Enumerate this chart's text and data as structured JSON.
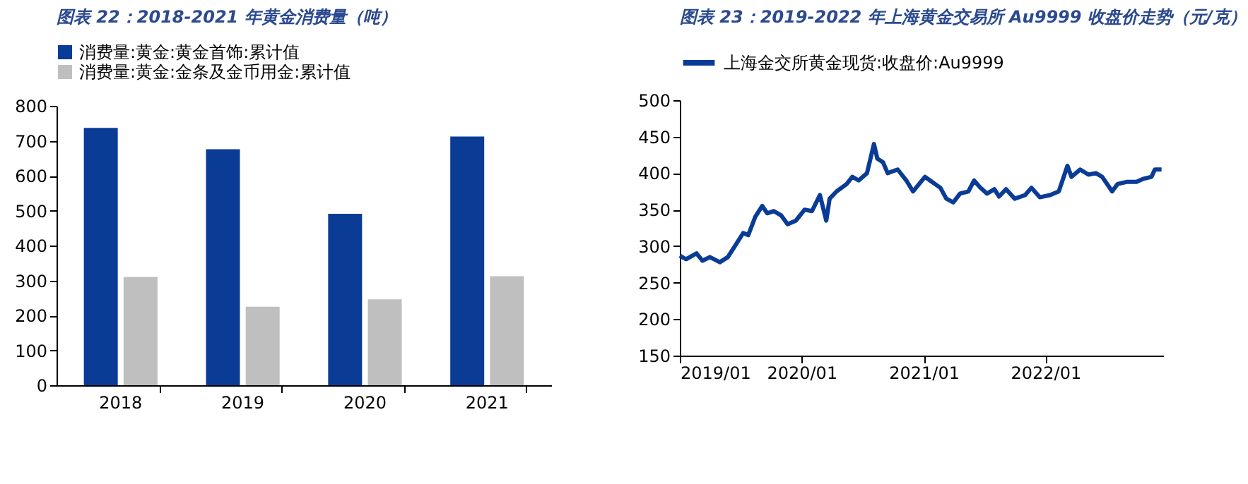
{
  "chart_data": [
    {
      "type": "bar",
      "title": "图表 22：2018-2021 年黄金消费量（吨）",
      "categories": [
        "2018",
        "2019",
        "2020",
        "2021"
      ],
      "series": [
        {
          "name": "消费量:黄金:黄金首饰:累计值",
          "color": "#0a3c96",
          "values": [
            737,
            676,
            491,
            712
          ]
        },
        {
          "name": "消费量:黄金:金条及金币用金:累计值",
          "color": "#bfbfbf",
          "values": [
            310,
            225,
            246,
            312
          ]
        }
      ],
      "ylim": [
        0,
        800
      ],
      "yticks": [
        0,
        100,
        200,
        300,
        400,
        500,
        600,
        700,
        800
      ],
      "grid": false,
      "legend": "top"
    },
    {
      "type": "line",
      "title": "图表 23：2019-2022 年上海黄金交易所 Au9999 收盘价走势（元/克）",
      "x": [
        "2019-01-01",
        "2019-01-20",
        "2019-02-20",
        "2019-03-10",
        "2019-04-01",
        "2019-05-01",
        "2019-05-25",
        "2019-06-15",
        "2019-07-10",
        "2019-07-25",
        "2019-08-15",
        "2019-09-05",
        "2019-09-20",
        "2019-10-10",
        "2019-11-01",
        "2019-11-20",
        "2019-12-15",
        "2020-01-10",
        "2020-02-01",
        "2020-02-25",
        "2020-03-15",
        "2020-03-25",
        "2020-04-15",
        "2020-05-15",
        "2020-06-01",
        "2020-06-20",
        "2020-07-15",
        "2020-08-05",
        "2020-08-15",
        "2020-09-01",
        "2020-09-15",
        "2020-10-15",
        "2020-11-10",
        "2020-11-30",
        "2021-01-05",
        "2021-01-20",
        "2021-02-20",
        "2021-03-10",
        "2021-03-31",
        "2021-04-20",
        "2021-05-15",
        "2021-06-01",
        "2021-06-20",
        "2021-07-10",
        "2021-08-01",
        "2021-08-15",
        "2021-09-05",
        "2021-10-01",
        "2021-11-01",
        "2021-11-20",
        "2021-12-15",
        "2022-01-15",
        "2022-02-10",
        "2022-03-08",
        "2022-03-20",
        "2022-04-15",
        "2022-05-10",
        "2022-06-01",
        "2022-06-20",
        "2022-07-20",
        "2022-08-05",
        "2022-09-01",
        "2022-10-01",
        "2022-10-20",
        "2022-11-15",
        "2022-11-25",
        "2022-12-15"
      ],
      "series": [
        {
          "name": "上海金交所黄金现货:收盘价:Au9999",
          "color": "#0a3c96",
          "values": [
            287,
            282,
            290,
            280,
            285,
            278,
            285,
            300,
            318,
            315,
            340,
            355,
            345,
            348,
            342,
            330,
            335,
            350,
            348,
            370,
            335,
            365,
            375,
            385,
            395,
            390,
            400,
            440,
            420,
            415,
            400,
            405,
            390,
            375,
            395,
            390,
            380,
            365,
            360,
            372,
            375,
            390,
            380,
            372,
            378,
            368,
            378,
            365,
            370,
            380,
            367,
            370,
            375,
            410,
            395,
            405,
            398,
            400,
            395,
            375,
            385,
            388,
            388,
            392,
            395,
            405,
            405
          ]
        }
      ],
      "xlim": [
        "2019-01-01",
        "2022-12-20"
      ],
      "xticks": [
        {
          "value": "2019-01",
          "label": "2019/01"
        },
        {
          "value": "2020-01",
          "label": "2020/01"
        },
        {
          "value": "2021-01",
          "label": "2021/01"
        },
        {
          "value": "2022-01",
          "label": "2022/01"
        }
      ],
      "ylim": [
        150,
        500
      ],
      "yticks": [
        150,
        200,
        250,
        300,
        350,
        400,
        450,
        500
      ],
      "grid": false,
      "legend": "top"
    }
  ]
}
